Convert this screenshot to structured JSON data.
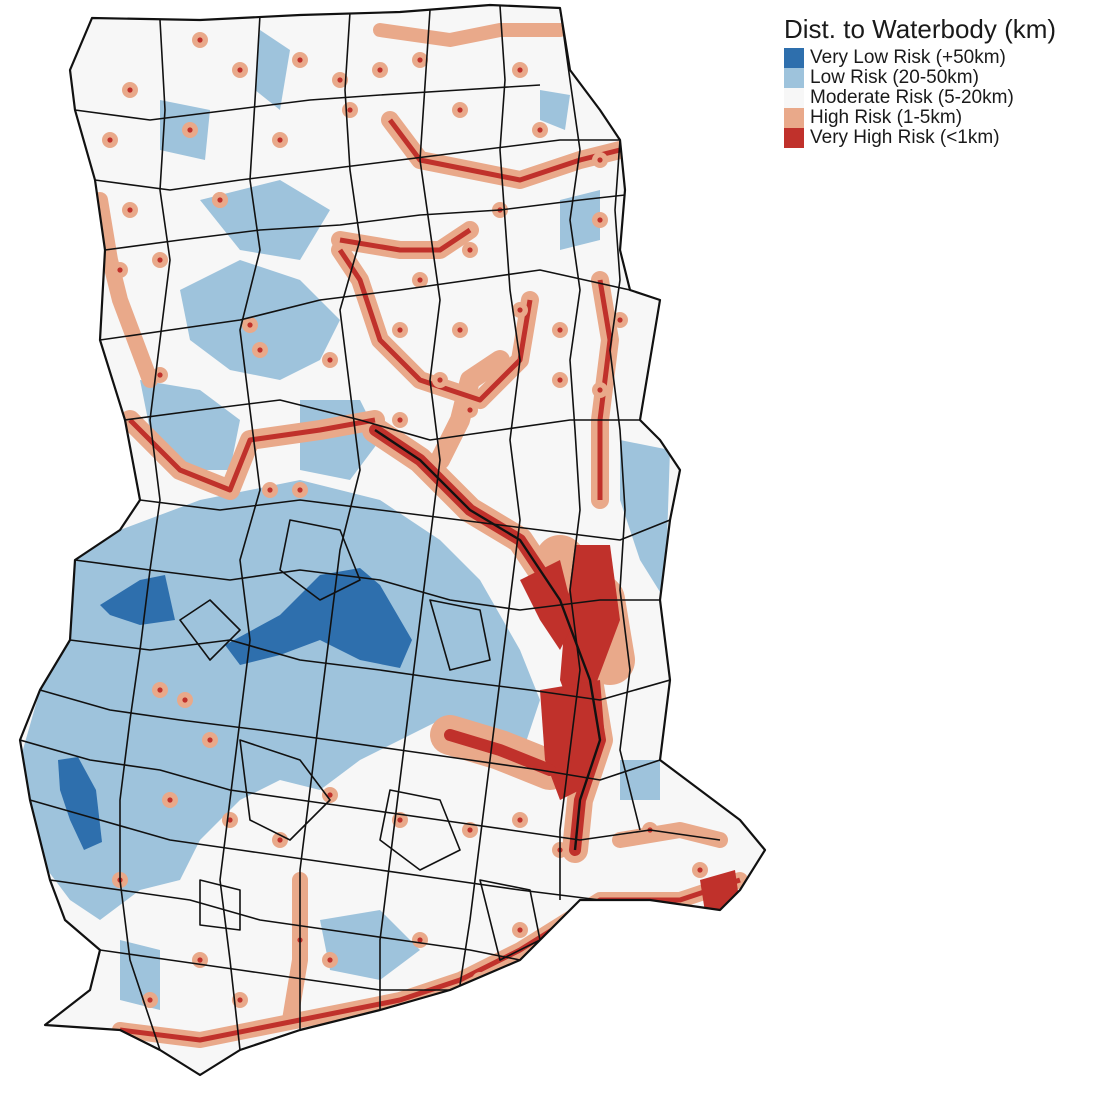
{
  "legend": {
    "title": "Dist. to Waterbody (km)",
    "items": [
      {
        "label": "Very Low Risk (+50km)",
        "color": "#2e6fad"
      },
      {
        "label": "Low Risk (20-50km)",
        "color": "#9ec3dc"
      },
      {
        "label": "Moderate Risk (5-20km)",
        "color": "#f7f7f7"
      },
      {
        "label": "High Risk (1-5km)",
        "color": "#e9a98a"
      },
      {
        "label": "Very High Risk (<1km)",
        "color": "#c0312b"
      }
    ]
  },
  "colors": {
    "very_low": "#2e6fad",
    "low": "#9ec3dc",
    "moderate": "#f7f7f7",
    "high": "#e9a98a",
    "very_high": "#c0312b",
    "boundary": "#111111"
  }
}
